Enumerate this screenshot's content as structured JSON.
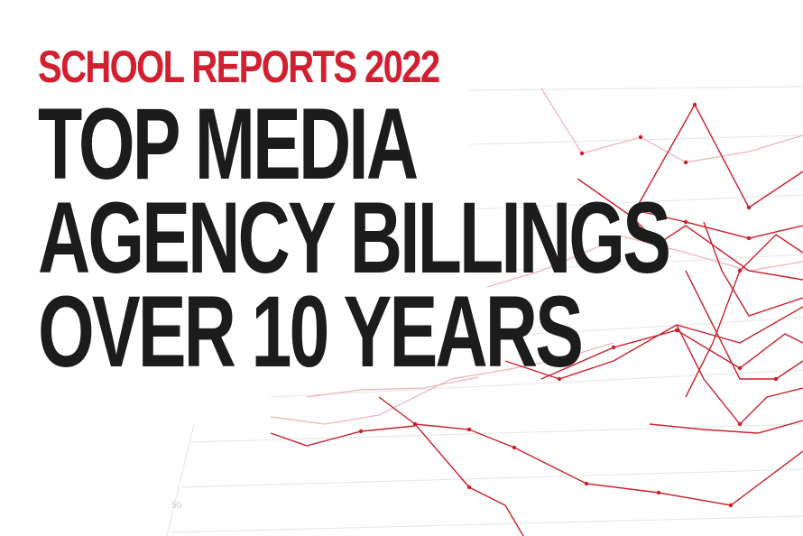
{
  "kicker": "SCHOOL REPORTS 2022",
  "headline": {
    "line1": "TOP MEDIA",
    "line2": "AGENCY BILLINGS",
    "line3": "OVER 10 YEARS"
  },
  "decor_axis_label": "50",
  "colors": {
    "kicker": "#d1202f",
    "headline": "#1c1c1c",
    "line_red": "#c8202a",
    "line_faint": "#e8a3a8",
    "grid": "#e6e6e6",
    "background": "#ffffff"
  }
}
